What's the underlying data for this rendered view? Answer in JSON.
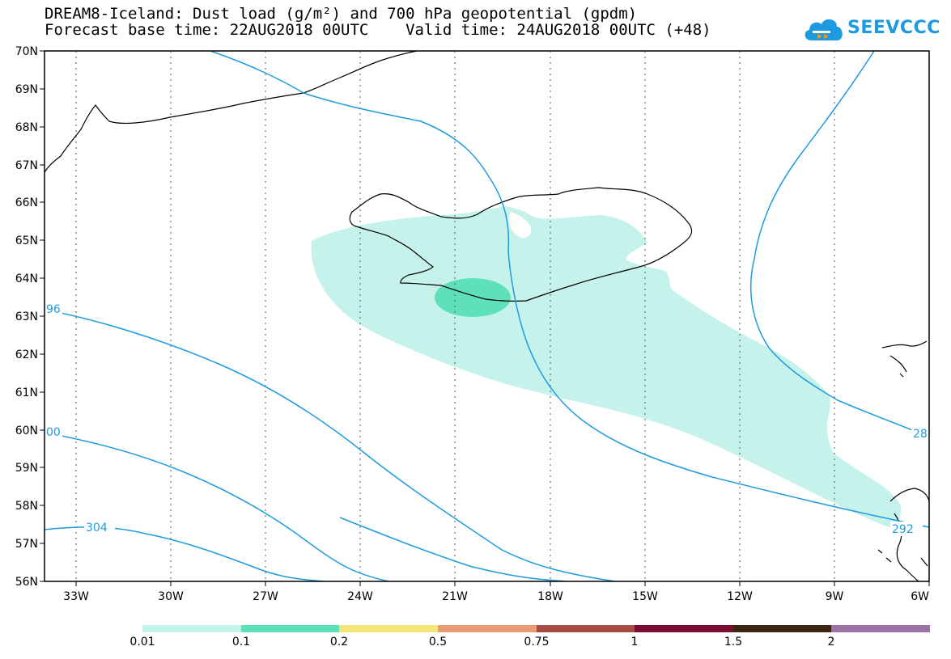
{
  "title": {
    "line1": "DREAM8-Iceland: Dust load (g/m²) and 700 hPa geopotential (gpdm)",
    "line2": "Forecast base time: 22AUG2018 00UTC    Valid time: 24AUG2018 00UTC (+48)"
  },
  "logo": {
    "text": "SEEVCCC",
    "icon": "cloud-icon"
  },
  "map": {
    "projection": "lat-lon",
    "lat_range": [
      56,
      70
    ],
    "lon_range": [
      -34,
      -6
    ],
    "lat_labels": [
      "56N",
      "57N",
      "58N",
      "59N",
      "60N",
      "61N",
      "62N",
      "63N",
      "64N",
      "65N",
      "66N",
      "67N",
      "68N",
      "69N",
      "70N"
    ],
    "lon_labels": [
      "33W",
      "30W",
      "27W",
      "24W",
      "21W",
      "18W",
      "15W",
      "12W",
      "9W",
      "6W"
    ],
    "contour_labels": [
      "96",
      "00",
      "304",
      "28",
      "292"
    ],
    "contour_color": "#1e9be0",
    "grid": "dotted"
  },
  "colorbar": {
    "colors": [
      "#c6f2ec",
      "#5ee0b8",
      "#f5e67a",
      "#ec9c74",
      "#a94c44",
      "#7c0c30",
      "#3a2412",
      "#9c72a6"
    ],
    "labels": [
      "0.01",
      "0.1",
      "0.2",
      "0.5",
      "0.75",
      "1",
      "1.5",
      "2"
    ]
  }
}
